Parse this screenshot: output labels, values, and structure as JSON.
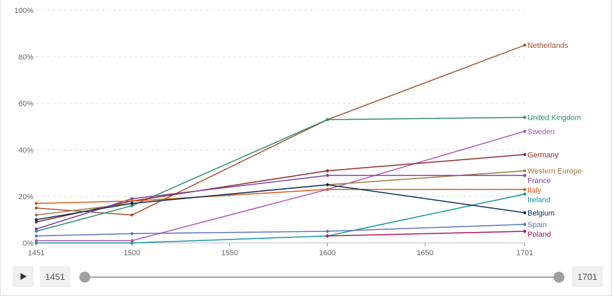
{
  "chart_data": {
    "type": "line",
    "x": [
      1451,
      1500,
      1600,
      1701
    ],
    "xticks": [
      "1451",
      "1500",
      "1550",
      "1600",
      "1650",
      "1701"
    ],
    "xtick_values": [
      1451,
      1500,
      1550,
      1600,
      1650,
      1701
    ],
    "xlim": [
      1451,
      1701
    ],
    "ylim": [
      0,
      100
    ],
    "yticks": [
      "0%",
      "20%",
      "40%",
      "60%",
      "80%",
      "100%"
    ],
    "ytick_values": [
      0,
      20,
      40,
      60,
      80,
      100
    ],
    "grid": "horizontal dashed",
    "legend": "labels at line ends",
    "series": [
      {
        "name": "Netherlands",
        "color": "#a0522d",
        "values": [
          15,
          12,
          53,
          85
        ]
      },
      {
        "name": "United Kingdom",
        "color": "#2e8b6e",
        "values": [
          5,
          16,
          53,
          54
        ]
      },
      {
        "name": "Sweden",
        "color": "#b052b5",
        "values": [
          1,
          1,
          23,
          48
        ]
      },
      {
        "name": "Germany",
        "color": "#8b2a2a",
        "values": [
          9,
          18,
          31,
          38
        ]
      },
      {
        "name": "Western Europe",
        "color": "#9b7a3e",
        "values": [
          12,
          17,
          25,
          31
        ]
      },
      {
        "name": "France",
        "color": "#7a3fa8",
        "values": [
          6,
          19,
          29,
          29
        ]
      },
      {
        "name": "Italy",
        "color": "#d45a17",
        "values": [
          17,
          18,
          23,
          23
        ]
      },
      {
        "name": "Ireland",
        "color": "#12959e",
        "values": [
          0,
          0,
          3,
          21
        ]
      },
      {
        "name": "Belgium",
        "color": "#0b2d57",
        "values": [
          10,
          17,
          25,
          13
        ]
      },
      {
        "name": "Spain",
        "color": "#5c74b8",
        "values": [
          3,
          4,
          5,
          8
        ]
      },
      {
        "name": "Poland",
        "color": "#b0134c",
        "values": [
          null,
          null,
          3,
          5
        ]
      }
    ]
  },
  "controls": {
    "play_icon": "play-icon",
    "start_year": "1451",
    "end_year": "1701"
  }
}
